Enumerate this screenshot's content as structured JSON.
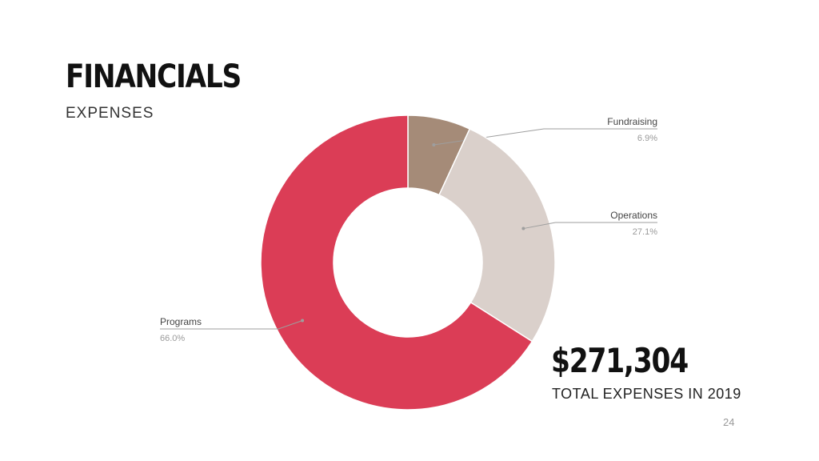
{
  "slide": {
    "title": "FINANCIALS",
    "subtitle": "EXPENSES",
    "total_amount": "$271,304",
    "total_caption": "TOTAL EXPENSES IN 2019",
    "page_number": "24"
  },
  "chart_data": {
    "type": "pie",
    "variant": "donut",
    "title": "",
    "slices": [
      {
        "label": "Fundraising",
        "value": 6.9,
        "value_label": "6.9%",
        "color": "#a58b78"
      },
      {
        "label": "Operations",
        "value": 27.1,
        "value_label": "27.1%",
        "color": "#dad0cb"
      },
      {
        "label": "Programs",
        "value": 66.0,
        "value_label": "66.0%",
        "color": "#db3d56"
      }
    ],
    "start_angle_deg": 0,
    "direction": "clockwise",
    "label_style": "leader-lines"
  }
}
